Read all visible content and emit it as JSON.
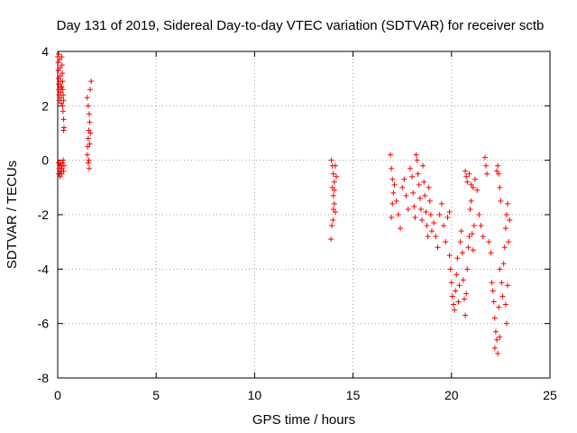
{
  "chart_data": {
    "type": "scatter",
    "title": "Day 131 of 2019, Sidereal Day-to-day VTEC variation (SDTVAR) for receiver sctb",
    "xlabel": "GPS time / hours",
    "ylabel": "SDTVAR / TECUs",
    "xlim": [
      0,
      25
    ],
    "ylim": [
      -8,
      4
    ],
    "xticks": [
      0,
      5,
      10,
      15,
      20,
      25
    ],
    "yticks": [
      -8,
      -6,
      -4,
      -2,
      0,
      2,
      4
    ],
    "xtick_labels": [
      "0",
      "5",
      "10",
      "15",
      "20",
      "25"
    ],
    "ytick_labels": [
      "-8",
      "-6",
      "-4",
      "-2",
      "0",
      "2",
      "4"
    ],
    "grid": true,
    "marker": "+",
    "color": "#ff0000",
    "series": [
      {
        "name": "SDTVAR",
        "points": [
          [
            0.0,
            3.8
          ],
          [
            0.02,
            3.6
          ],
          [
            0.03,
            3.3
          ],
          [
            0.04,
            3.0
          ],
          [
            0.05,
            2.8
          ],
          [
            0.06,
            2.6
          ],
          [
            0.07,
            2.4
          ],
          [
            0.08,
            2.2
          ],
          [
            0.05,
            3.9
          ],
          [
            0.1,
            3.7
          ],
          [
            0.12,
            3.4
          ],
          [
            0.13,
            3.1
          ],
          [
            0.14,
            2.9
          ],
          [
            0.15,
            2.7
          ],
          [
            0.16,
            2.5
          ],
          [
            0.17,
            2.3
          ],
          [
            0.18,
            2.1
          ],
          [
            0.2,
            3.8
          ],
          [
            0.22,
            3.5
          ],
          [
            0.24,
            3.2
          ],
          [
            0.25,
            2.9
          ],
          [
            0.26,
            2.6
          ],
          [
            0.28,
            2.4
          ],
          [
            0.3,
            2.2
          ],
          [
            0.3,
            1.5
          ],
          [
            0.32,
            1.2
          ],
          [
            0.3,
            1.1
          ],
          [
            0.27,
            1.8
          ],
          [
            0.25,
            2.0
          ],
          [
            0.2,
            2.7
          ],
          [
            0.05,
            -0.1
          ],
          [
            0.08,
            -0.3
          ],
          [
            0.1,
            -0.5
          ],
          [
            0.12,
            -0.6
          ],
          [
            0.15,
            -0.4
          ],
          [
            0.18,
            -0.2
          ],
          [
            0.2,
            -0.5
          ],
          [
            0.22,
            -0.3
          ],
          [
            0.25,
            -0.1
          ],
          [
            0.28,
            0.0
          ],
          [
            0.3,
            -0.4
          ],
          [
            0.32,
            -0.2
          ],
          [
            0.1,
            -0.2
          ],
          [
            0.06,
            -0.5
          ],
          [
            0.14,
            -0.1
          ],
          [
            1.5,
            2.3
          ],
          [
            1.55,
            2.0
          ],
          [
            1.6,
            1.7
          ],
          [
            1.62,
            1.4
          ],
          [
            1.58,
            1.1
          ],
          [
            1.55,
            0.8
          ],
          [
            1.52,
            0.5
          ],
          [
            1.5,
            0.2
          ],
          [
            1.55,
            -0.1
          ],
          [
            1.6,
            -0.3
          ],
          [
            1.65,
            2.6
          ],
          [
            1.7,
            2.9
          ],
          [
            1.58,
            0.0
          ],
          [
            1.62,
            0.6
          ],
          [
            1.66,
            1.0
          ],
          [
            13.9,
            0.0
          ],
          [
            13.95,
            -0.2
          ],
          [
            14.0,
            -0.5
          ],
          [
            14.05,
            -0.8
          ],
          [
            13.95,
            -1.0
          ],
          [
            14.0,
            -1.3
          ],
          [
            14.05,
            -1.6
          ],
          [
            14.1,
            -1.9
          ],
          [
            13.98,
            -2.2
          ],
          [
            13.92,
            -2.4
          ],
          [
            13.88,
            -2.9
          ],
          [
            14.1,
            -0.2
          ],
          [
            14.15,
            -0.6
          ],
          [
            14.0,
            -1.8
          ],
          [
            14.05,
            -1.1
          ],
          [
            16.9,
            0.2
          ],
          [
            16.95,
            -0.3
          ],
          [
            17.0,
            -0.7
          ],
          [
            17.05,
            -1.2
          ],
          [
            17.0,
            -1.6
          ],
          [
            16.95,
            -2.1
          ],
          [
            17.1,
            -0.9
          ],
          [
            17.2,
            -1.5
          ],
          [
            17.3,
            -2.0
          ],
          [
            17.4,
            -2.5
          ],
          [
            17.5,
            -1.0
          ],
          [
            17.6,
            -0.7
          ],
          [
            17.7,
            -1.3
          ],
          [
            17.8,
            -1.8
          ],
          [
            17.9,
            -0.3
          ],
          [
            18.0,
            -0.6
          ],
          [
            18.05,
            -1.2
          ],
          [
            18.1,
            -1.7
          ],
          [
            18.15,
            -2.1
          ],
          [
            18.2,
            0.2
          ],
          [
            18.25,
            0.0
          ],
          [
            18.3,
            -0.5
          ],
          [
            18.35,
            -0.9
          ],
          [
            18.4,
            -1.4
          ],
          [
            18.45,
            -1.8
          ],
          [
            18.5,
            -2.2
          ],
          [
            18.55,
            -0.2
          ],
          [
            18.6,
            -0.8
          ],
          [
            18.65,
            -1.3
          ],
          [
            18.7,
            -1.9
          ],
          [
            18.75,
            -2.4
          ],
          [
            18.8,
            -2.8
          ],
          [
            18.85,
            -1.0
          ],
          [
            18.9,
            -1.5
          ],
          [
            18.95,
            -2.0
          ],
          [
            19.0,
            -2.6
          ],
          [
            19.1,
            -2.3
          ],
          [
            19.2,
            -2.8
          ],
          [
            19.3,
            -3.2
          ],
          [
            19.4,
            -2.0
          ],
          [
            19.5,
            -1.6
          ],
          [
            19.6,
            -2.4
          ],
          [
            19.7,
            -3.0
          ],
          [
            19.8,
            -2.1
          ],
          [
            19.9,
            -1.9
          ],
          [
            19.9,
            -3.5
          ],
          [
            19.95,
            -4.0
          ],
          [
            20.0,
            -4.5
          ],
          [
            20.05,
            -5.0
          ],
          [
            20.1,
            -5.3
          ],
          [
            20.15,
            -5.5
          ],
          [
            20.2,
            -4.8
          ],
          [
            20.25,
            -4.2
          ],
          [
            20.3,
            -3.6
          ],
          [
            20.35,
            -5.2
          ],
          [
            20.4,
            -4.6
          ],
          [
            20.45,
            -3.0
          ],
          [
            20.5,
            -2.6
          ],
          [
            20.55,
            -3.4
          ],
          [
            20.6,
            -4.4
          ],
          [
            20.65,
            -5.1
          ],
          [
            20.7,
            -5.7
          ],
          [
            20.75,
            -4.9
          ],
          [
            20.8,
            -4.0
          ],
          [
            20.85,
            -3.2
          ],
          [
            20.9,
            -2.8
          ],
          [
            20.95,
            -1.8
          ],
          [
            21.0,
            -1.5
          ],
          [
            21.05,
            -2.7
          ],
          [
            21.1,
            -3.3
          ],
          [
            21.15,
            -2.4
          ],
          [
            20.7,
            -0.4
          ],
          [
            20.75,
            -0.6
          ],
          [
            20.8,
            -0.8
          ],
          [
            20.9,
            -0.5
          ],
          [
            21.0,
            -0.9
          ],
          [
            21.1,
            -1.0
          ],
          [
            21.2,
            -0.7
          ],
          [
            21.3,
            -1.1
          ],
          [
            21.4,
            -2.0
          ],
          [
            21.5,
            -2.4
          ],
          [
            21.6,
            -2.8
          ],
          [
            21.7,
            0.1
          ],
          [
            21.75,
            -0.2
          ],
          [
            21.8,
            -0.5
          ],
          [
            21.9,
            -3.0
          ],
          [
            22.0,
            -3.4
          ],
          [
            22.05,
            -4.5
          ],
          [
            22.1,
            -4.8
          ],
          [
            22.15,
            -5.2
          ],
          [
            22.2,
            -5.8
          ],
          [
            22.25,
            -6.3
          ],
          [
            22.3,
            -6.6
          ],
          [
            22.35,
            -7.1
          ],
          [
            22.4,
            -5.4
          ],
          [
            22.45,
            -4.0
          ],
          [
            22.3,
            -0.4
          ],
          [
            22.35,
            -0.2
          ],
          [
            22.4,
            -0.5
          ],
          [
            22.45,
            -1.0
          ],
          [
            22.5,
            -1.5
          ],
          [
            22.55,
            -4.5
          ],
          [
            22.6,
            -5.0
          ],
          [
            22.65,
            -3.8
          ],
          [
            22.7,
            -3.2
          ],
          [
            22.75,
            -2.5
          ],
          [
            22.8,
            -2.0
          ],
          [
            22.85,
            -1.6
          ],
          [
            22.75,
            -5.3
          ],
          [
            22.8,
            -6.0
          ],
          [
            22.85,
            -4.6
          ],
          [
            22.9,
            -3.0
          ],
          [
            22.95,
            -2.2
          ],
          [
            22.2,
            -6.9
          ],
          [
            22.45,
            -6.5
          ]
        ]
      }
    ]
  }
}
